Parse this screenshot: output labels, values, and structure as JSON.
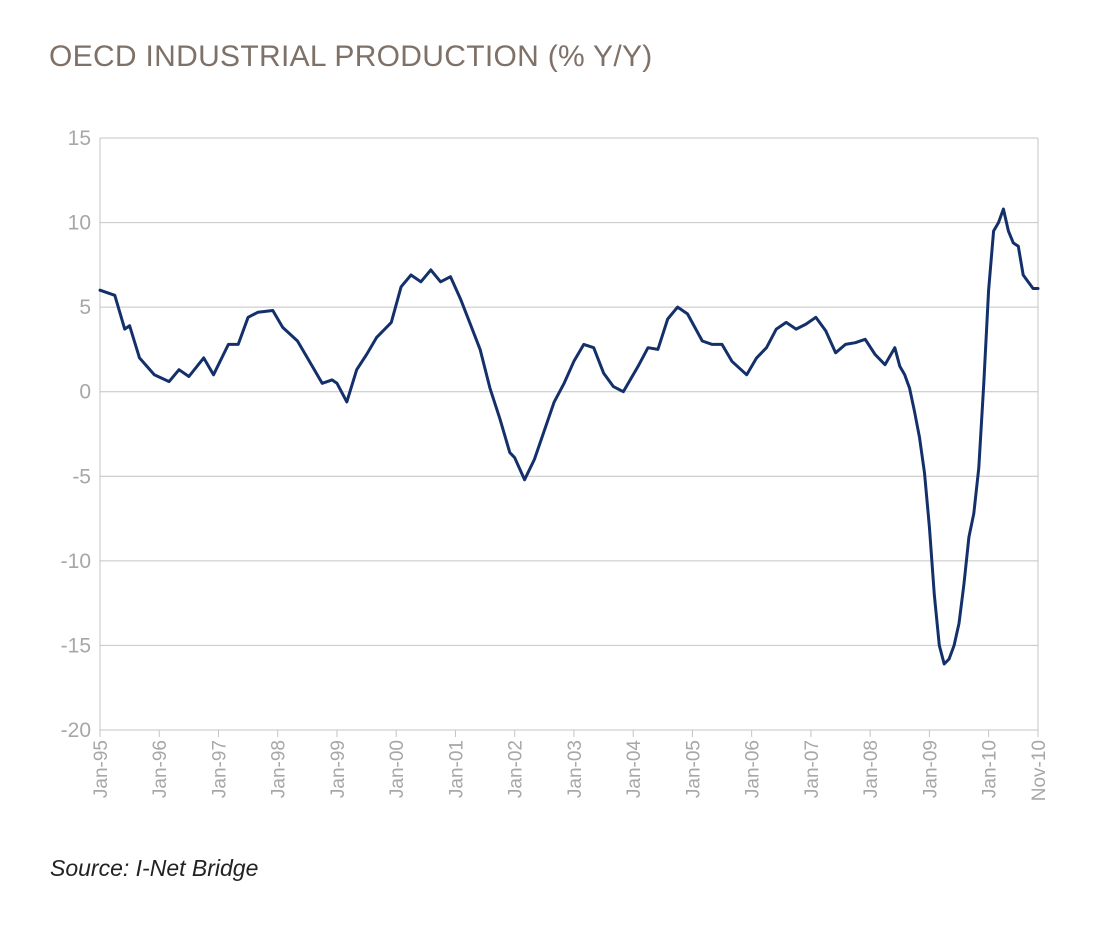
{
  "chart_data": {
    "type": "line",
    "title": "OECD INDUSTRIAL PRODUCTION (% Y/Y)",
    "source": "Source: I-Net Bridge",
    "xlabel": "",
    "ylabel": "",
    "ylim": [
      -20,
      15
    ],
    "yticks": [
      "15",
      "10",
      "5",
      "0",
      "-5",
      "-10",
      "-15",
      "-20"
    ],
    "ytick_values": [
      15,
      10,
      5,
      0,
      -5,
      -10,
      -15,
      -20
    ],
    "xticks": [
      "Jan-95",
      "Jan-96",
      "Jan-97",
      "Jan-98",
      "Jan-99",
      "Jan-00",
      "Jan-01",
      "Jan-02",
      "Jan-03",
      "Jan-04",
      "Jan-05",
      "Jan-06",
      "Jan-07",
      "Jan-08",
      "Jan-09",
      "Jan-10",
      "Nov-10"
    ],
    "xtick_dates": [
      "1995-01",
      "1996-01",
      "1997-01",
      "1998-01",
      "1999-01",
      "2000-01",
      "2001-01",
      "2002-01",
      "2003-01",
      "2004-01",
      "2005-01",
      "2006-01",
      "2007-01",
      "2008-01",
      "2009-01",
      "2010-01",
      "2010-11"
    ],
    "grid": true,
    "legend": "none",
    "line_color": "#14306b",
    "series": [
      {
        "x": [
          "1995-01",
          "1995-04",
          "1995-06",
          "1995-07",
          "1995-09",
          "1995-12",
          "1996-03",
          "1996-05",
          "1996-07",
          "1996-10",
          "1996-12",
          "1997-03",
          "1997-05",
          "1997-07",
          "1997-09",
          "1997-12",
          "1998-02",
          "1998-05",
          "1998-08",
          "1998-10",
          "1998-12",
          "1999-01",
          "1999-03",
          "1999-05",
          "1999-07",
          "1999-09",
          "1999-12",
          "2000-02",
          "2000-04",
          "2000-06",
          "2000-08",
          "2000-10",
          "2000-12",
          "2001-02",
          "2001-04",
          "2001-06",
          "2001-08",
          "2001-10",
          "2001-12",
          "2002-01",
          "2002-03",
          "2002-05",
          "2002-07",
          "2002-09",
          "2002-11",
          "2003-01",
          "2003-03",
          "2003-05",
          "2003-07",
          "2003-09",
          "2003-11",
          "2004-02",
          "2004-04",
          "2004-06",
          "2004-08",
          "2004-10",
          "2004-12",
          "2005-03",
          "2005-05",
          "2005-07",
          "2005-09",
          "2005-12",
          "2006-02",
          "2006-04",
          "2006-06",
          "2006-08",
          "2006-10",
          "2006-12",
          "2007-02",
          "2007-04",
          "2007-06",
          "2007-08",
          "2007-10",
          "2007-12",
          "2008-02",
          "2008-04",
          "2008-06",
          "2008-07",
          "2008-08",
          "2008-09",
          "2008-10",
          "2008-11",
          "2008-12",
          "2009-01",
          "2009-02",
          "2009-03",
          "2009-04",
          "2009-05",
          "2009-06",
          "2009-07",
          "2009-08",
          "2009-09",
          "2009-10",
          "2009-11",
          "2009-12",
          "2010-01",
          "2010-02",
          "2010-03",
          "2010-04",
          "2010-05",
          "2010-06",
          "2010-07",
          "2010-08",
          "2010-09",
          "2010-10",
          "2010-11"
        ],
        "y": [
          6.0,
          5.7,
          3.7,
          3.9,
          2.0,
          1.0,
          0.6,
          1.3,
          0.9,
          2.0,
          1.0,
          2.8,
          2.8,
          4.4,
          4.7,
          4.8,
          3.8,
          3.0,
          1.5,
          0.5,
          0.7,
          0.5,
          -0.6,
          1.3,
          2.2,
          3.2,
          4.1,
          6.2,
          6.9,
          6.5,
          7.2,
          6.5,
          6.8,
          5.5,
          4.0,
          2.5,
          0.2,
          -1.6,
          -3.6,
          -3.9,
          -5.2,
          -4.0,
          -2.3,
          -0.6,
          0.5,
          1.8,
          2.8,
          2.6,
          1.1,
          0.3,
          0.0,
          1.5,
          2.6,
          2.5,
          4.3,
          5.0,
          4.6,
          3.0,
          2.8,
          2.8,
          1.8,
          1.0,
          2.0,
          2.6,
          3.7,
          4.1,
          3.7,
          4.0,
          4.4,
          3.6,
          2.3,
          2.8,
          2.9,
          3.1,
          2.2,
          1.6,
          2.6,
          1.5,
          1.0,
          0.2,
          -1.2,
          -2.7,
          -4.8,
          -8.0,
          -12.0,
          -15.0,
          -16.1,
          -15.8,
          -15.0,
          -13.7,
          -11.4,
          -8.6,
          -7.2,
          -4.5,
          0.4,
          6.0,
          9.5,
          10.0,
          10.8,
          9.5,
          8.8,
          8.6,
          6.9,
          6.5,
          6.1,
          6.1
        ]
      }
    ]
  }
}
